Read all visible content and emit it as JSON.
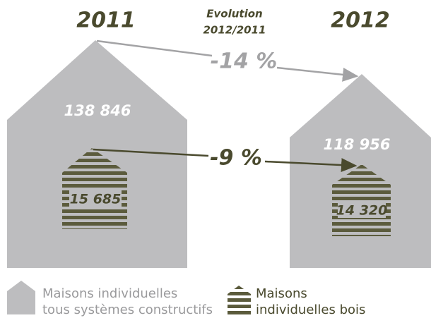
{
  "header": {
    "year_left": "2011",
    "evolution": [
      "Evolution",
      "2012/2011"
    ],
    "year_right": "2012"
  },
  "houses": {
    "left": {
      "all": "138 846",
      "wood": "15 685"
    },
    "right": {
      "all": "118 956",
      "wood": "14 320"
    }
  },
  "evolution": {
    "all": "-14 %",
    "wood": "-9 %"
  },
  "legend": {
    "all": [
      "Maisons individuelles",
      "tous systèmes constructifs"
    ],
    "wood": [
      "Maisons",
      "individuelles bois"
    ]
  }
}
